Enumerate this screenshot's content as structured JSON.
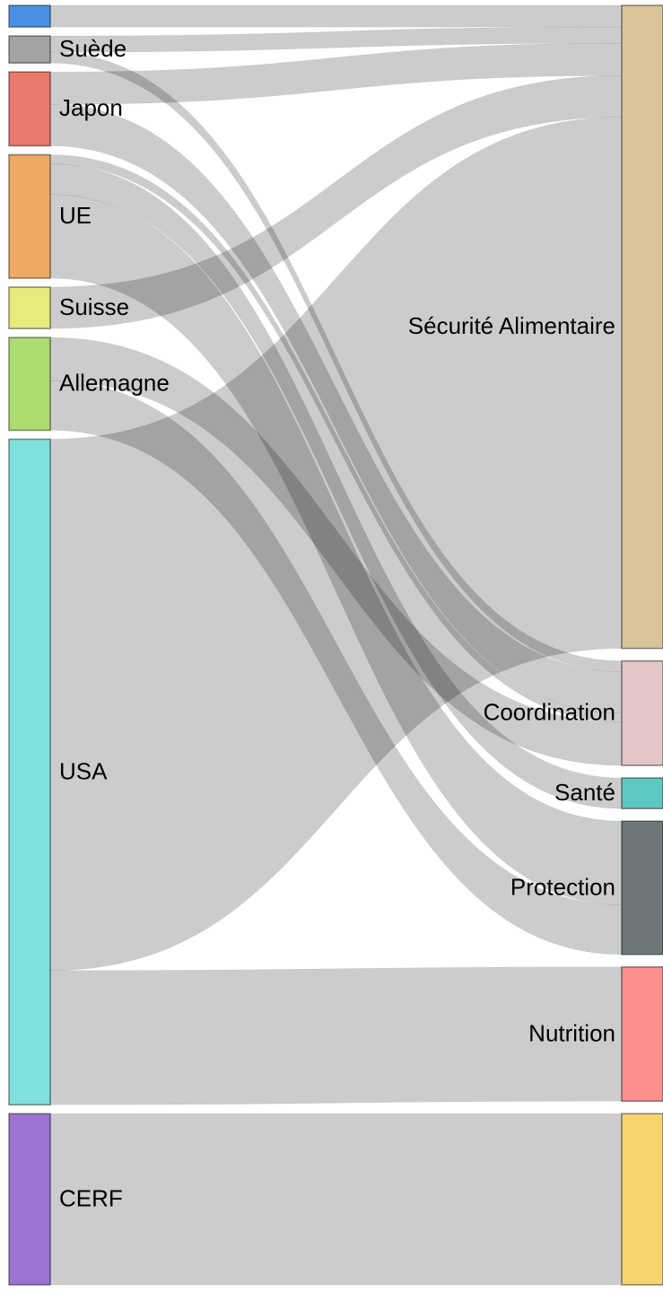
{
  "chart_data": {
    "type": "sankey",
    "nodes": [
      {
        "name": null,
        "color": "#4a90e2"
      },
      {
        "name": "Suède",
        "color": "#a3a3a3"
      },
      {
        "name": "Japon",
        "color": "#e8796b"
      },
      {
        "name": "UE",
        "color": "#eeaa64"
      },
      {
        "name": "Suisse",
        "color": "#e6eb79"
      },
      {
        "name": "Allemagne",
        "color": "#addb6f"
      },
      {
        "name": "USA",
        "color": "#80e0db"
      },
      {
        "name": "CERF",
        "color": "#9b74d3"
      },
      {
        "name": "Sécurité Alimentaire",
        "color": "#d9c498"
      },
      {
        "name": "Coordination",
        "color": "#e2c6c8"
      },
      {
        "name": "Santé",
        "color": "#5cc9c0"
      },
      {
        "name": "Protection",
        "color": "#6d7779"
      },
      {
        "name": "Nutrition",
        "color": "#fd8f8f"
      },
      {
        "name": null,
        "color": "#f5d56c"
      }
    ],
    "links": [
      {
        "source": 0,
        "target": 8,
        "value": 24
      },
      {
        "source": 1,
        "target": 8,
        "value": 18
      },
      {
        "source": 1,
        "target": 9,
        "value": 12
      },
      {
        "source": 2,
        "target": 8,
        "value": 36
      },
      {
        "source": 2,
        "target": 9,
        "value": 46
      },
      {
        "source": 3,
        "target": 9,
        "value": 10
      },
      {
        "source": 3,
        "target": 10,
        "value": 34
      },
      {
        "source": 3,
        "target": 11,
        "value": 93
      },
      {
        "source": 4,
        "target": 8,
        "value": 46
      },
      {
        "source": 5,
        "target": 9,
        "value": 48
      },
      {
        "source": 5,
        "target": 11,
        "value": 55
      },
      {
        "source": 6,
        "target": 8,
        "value": 590
      },
      {
        "source": 6,
        "target": 12,
        "value": 149
      },
      {
        "source": 7,
        "target": 13,
        "value": 190
      }
    ]
  }
}
